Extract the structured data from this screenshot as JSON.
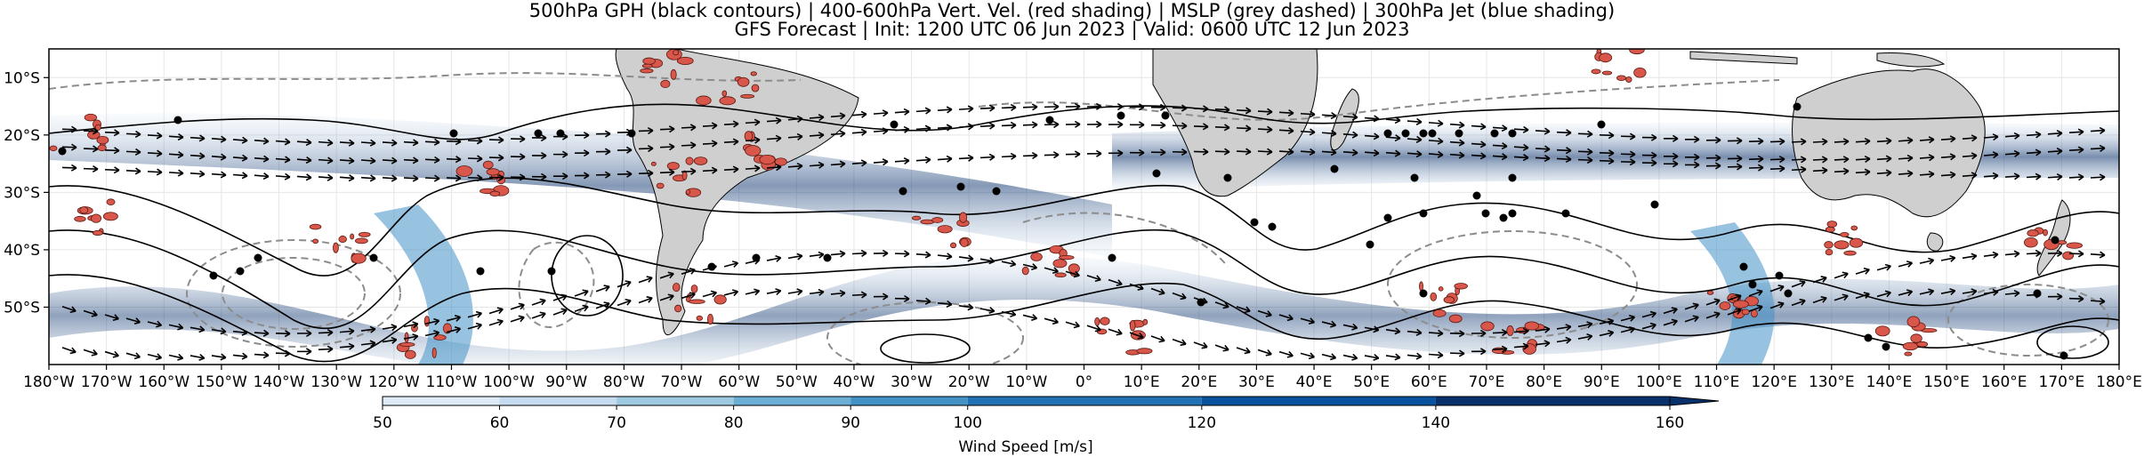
{
  "title_line1": "500hPa GPH (black contours) | 400-600hPa Vert. Vel. (red shading) | MSLP (grey dashed) | 300hPa Jet (blue shading)",
  "title_line2": "GFS Forecast | Init: 1200 UTC 06 Jun 2023 | Valid: 0600 UTC 12 Jun 2023",
  "map": {
    "lon_range": [
      -180,
      180
    ],
    "lat_range": [
      -60,
      -5
    ],
    "lat_ticks": [
      "10°S",
      "20°S",
      "30°S",
      "40°S",
      "50°S"
    ],
    "lat_tick_values": [
      -10,
      -20,
      -30,
      -40,
      -50
    ],
    "lon_ticks": [
      "180°W",
      "170°W",
      "160°W",
      "150°W",
      "140°W",
      "130°W",
      "120°W",
      "110°W",
      "100°W",
      "90°W",
      "80°W",
      "70°W",
      "60°W",
      "50°W",
      "40°W",
      "30°W",
      "20°W",
      "10°W",
      "0°",
      "10°E",
      "20°E",
      "30°E",
      "40°E",
      "50°E",
      "60°E",
      "70°E",
      "80°E",
      "90°E",
      "100°E",
      "110°E",
      "120°E",
      "130°E",
      "140°E",
      "150°E",
      "160°E",
      "170°E",
      "180°E"
    ],
    "lon_tick_values": [
      -180,
      -170,
      -160,
      -150,
      -140,
      -130,
      -120,
      -110,
      -100,
      -90,
      -80,
      -70,
      -60,
      -50,
      -40,
      -30,
      -20,
      -10,
      0,
      10,
      20,
      30,
      40,
      50,
      60,
      70,
      80,
      90,
      100,
      110,
      120,
      130,
      140,
      150,
      160,
      170,
      180
    ],
    "colors": {
      "land": "#cfcfcf",
      "ocean": "#ffffff",
      "gph_contour": "#000000",
      "mslp_contour": "#8c8c8c",
      "vertical_velocity": "#d9574a",
      "jet_light": "#c6dbef",
      "jet_mid": "#6baed6",
      "jet_dark": "#08306b"
    }
  },
  "colorbar": {
    "label": "Wind Speed [m/s]",
    "tick_labels": [
      "50",
      "60",
      "70",
      "80",
      "90",
      "100",
      "120",
      "140",
      "160"
    ],
    "tick_values": [
      50,
      60,
      70,
      80,
      90,
      100,
      120,
      140,
      160
    ],
    "colors": [
      "#f7fbff",
      "#deebf7",
      "#c6dbef",
      "#9ecae1",
      "#6baed6",
      "#4292c6",
      "#2171b5",
      "#08519c",
      "#08306b"
    ]
  }
}
